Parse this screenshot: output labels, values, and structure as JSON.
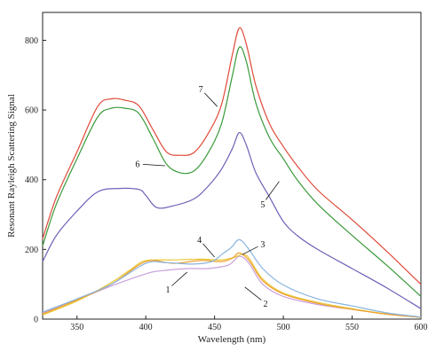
{
  "chart_data": {
    "type": "line",
    "xlabel": "Wavelength (nm)",
    "ylabel": "Resonant Rayleigh Scattering Signal",
    "xlim": [
      325,
      600
    ],
    "ylim": [
      0,
      880
    ],
    "xticks": [
      350,
      400,
      450,
      500,
      550,
      600
    ],
    "yticks": [
      0,
      200,
      400,
      600,
      800
    ],
    "grid": false,
    "series": [
      {
        "label": "1",
        "color": "#c9a0dc",
        "points": [
          [
            325,
            18
          ],
          [
            350,
            55
          ],
          [
            375,
            95
          ],
          [
            400,
            130
          ],
          [
            410,
            138
          ],
          [
            430,
            145
          ],
          [
            445,
            145
          ],
          [
            460,
            155
          ],
          [
            468,
            180
          ],
          [
            475,
            160
          ],
          [
            485,
            100
          ],
          [
            500,
            65
          ],
          [
            525,
            42
          ],
          [
            550,
            28
          ],
          [
            575,
            15
          ],
          [
            600,
            5
          ]
        ]
      },
      {
        "label": "2",
        "color": "#e8c838",
        "points": [
          [
            325,
            12
          ],
          [
            350,
            52
          ],
          [
            375,
            105
          ],
          [
            390,
            145
          ],
          [
            400,
            168
          ],
          [
            420,
            170
          ],
          [
            440,
            172
          ],
          [
            455,
            170
          ],
          [
            465,
            178
          ],
          [
            470,
            186
          ],
          [
            475,
            175
          ],
          [
            485,
            115
          ],
          [
            500,
            75
          ],
          [
            525,
            48
          ],
          [
            550,
            30
          ],
          [
            575,
            15
          ],
          [
            600,
            5
          ]
        ]
      },
      {
        "label": "3",
        "color": "#f0a030",
        "points": [
          [
            325,
            15
          ],
          [
            350,
            55
          ],
          [
            375,
            100
          ],
          [
            400,
            165
          ],
          [
            420,
            160
          ],
          [
            440,
            168
          ],
          [
            455,
            165
          ],
          [
            463,
            175
          ],
          [
            468,
            190
          ],
          [
            475,
            168
          ],
          [
            485,
            110
          ],
          [
            500,
            72
          ],
          [
            525,
            45
          ],
          [
            550,
            28
          ],
          [
            575,
            14
          ],
          [
            600,
            5
          ]
        ]
      },
      {
        "label": "4",
        "color": "#88b4e0",
        "points": [
          [
            325,
            20
          ],
          [
            350,
            58
          ],
          [
            375,
            100
          ],
          [
            400,
            160
          ],
          [
            415,
            162
          ],
          [
            435,
            158
          ],
          [
            448,
            165
          ],
          [
            455,
            185
          ],
          [
            462,
            205
          ],
          [
            468,
            228
          ],
          [
            475,
            200
          ],
          [
            485,
            145
          ],
          [
            500,
            98
          ],
          [
            525,
            58
          ],
          [
            550,
            38
          ],
          [
            575,
            18
          ],
          [
            600,
            6
          ]
        ]
      },
      {
        "label": "5",
        "color": "#7060b8",
        "points": [
          [
            325,
            165
          ],
          [
            335,
            240
          ],
          [
            350,
            310
          ],
          [
            365,
            365
          ],
          [
            380,
            375
          ],
          [
            395,
            372
          ],
          [
            400,
            355
          ],
          [
            408,
            320
          ],
          [
            420,
            325
          ],
          [
            435,
            345
          ],
          [
            445,
            380
          ],
          [
            455,
            430
          ],
          [
            463,
            490
          ],
          [
            468,
            535
          ],
          [
            473,
            500
          ],
          [
            480,
            420
          ],
          [
            490,
            350
          ],
          [
            500,
            280
          ],
          [
            510,
            240
          ],
          [
            525,
            200
          ],
          [
            550,
            145
          ],
          [
            575,
            90
          ],
          [
            600,
            30
          ]
        ]
      },
      {
        "label": "6",
        "color": "#3a9a3a",
        "points": [
          [
            325,
            210
          ],
          [
            335,
            330
          ],
          [
            350,
            460
          ],
          [
            365,
            580
          ],
          [
            375,
            605
          ],
          [
            385,
            605
          ],
          [
            395,
            590
          ],
          [
            405,
            520
          ],
          [
            415,
            445
          ],
          [
            425,
            420
          ],
          [
            435,
            425
          ],
          [
            445,
            475
          ],
          [
            455,
            560
          ],
          [
            463,
            700
          ],
          [
            468,
            780
          ],
          [
            473,
            740
          ],
          [
            480,
            620
          ],
          [
            490,
            520
          ],
          [
            500,
            460
          ],
          [
            510,
            400
          ],
          [
            525,
            330
          ],
          [
            550,
            240
          ],
          [
            575,
            155
          ],
          [
            600,
            65
          ]
        ]
      },
      {
        "label": "7",
        "color": "#e04a3a",
        "points": [
          [
            325,
            230
          ],
          [
            335,
            350
          ],
          [
            350,
            480
          ],
          [
            365,
            610
          ],
          [
            375,
            632
          ],
          [
            385,
            628
          ],
          [
            395,
            612
          ],
          [
            405,
            545
          ],
          [
            415,
            480
          ],
          [
            425,
            470
          ],
          [
            435,
            478
          ],
          [
            445,
            530
          ],
          [
            455,
            615
          ],
          [
            463,
            760
          ],
          [
            468,
            835
          ],
          [
            473,
            790
          ],
          [
            480,
            670
          ],
          [
            490,
            560
          ],
          [
            500,
            495
          ],
          [
            510,
            440
          ],
          [
            525,
            370
          ],
          [
            550,
            285
          ],
          [
            575,
            195
          ],
          [
            600,
            100
          ]
        ]
      }
    ],
    "annotations": [
      {
        "text": "1",
        "label_at": [
          416,
          85
        ],
        "tip_at": [
          430,
          135
        ]
      },
      {
        "text": "2",
        "label_at": [
          487,
          45
        ],
        "tip_at": [
          472,
          92
        ]
      },
      {
        "text": "3",
        "label_at": [
          485,
          215
        ],
        "tip_at": [
          470,
          185
        ]
      },
      {
        "text": "4",
        "label_at": [
          439,
          228
        ],
        "tip_at": [
          450,
          178
        ]
      },
      {
        "text": "5",
        "label_at": [
          485,
          330
        ],
        "tip_at": [
          497,
          395
        ]
      },
      {
        "text": "6",
        "label_at": [
          394,
          445
        ],
        "tip_at": [
          414,
          440
        ]
      },
      {
        "text": "7",
        "label_at": [
          440,
          660
        ],
        "tip_at": [
          452,
          610
        ]
      }
    ]
  }
}
